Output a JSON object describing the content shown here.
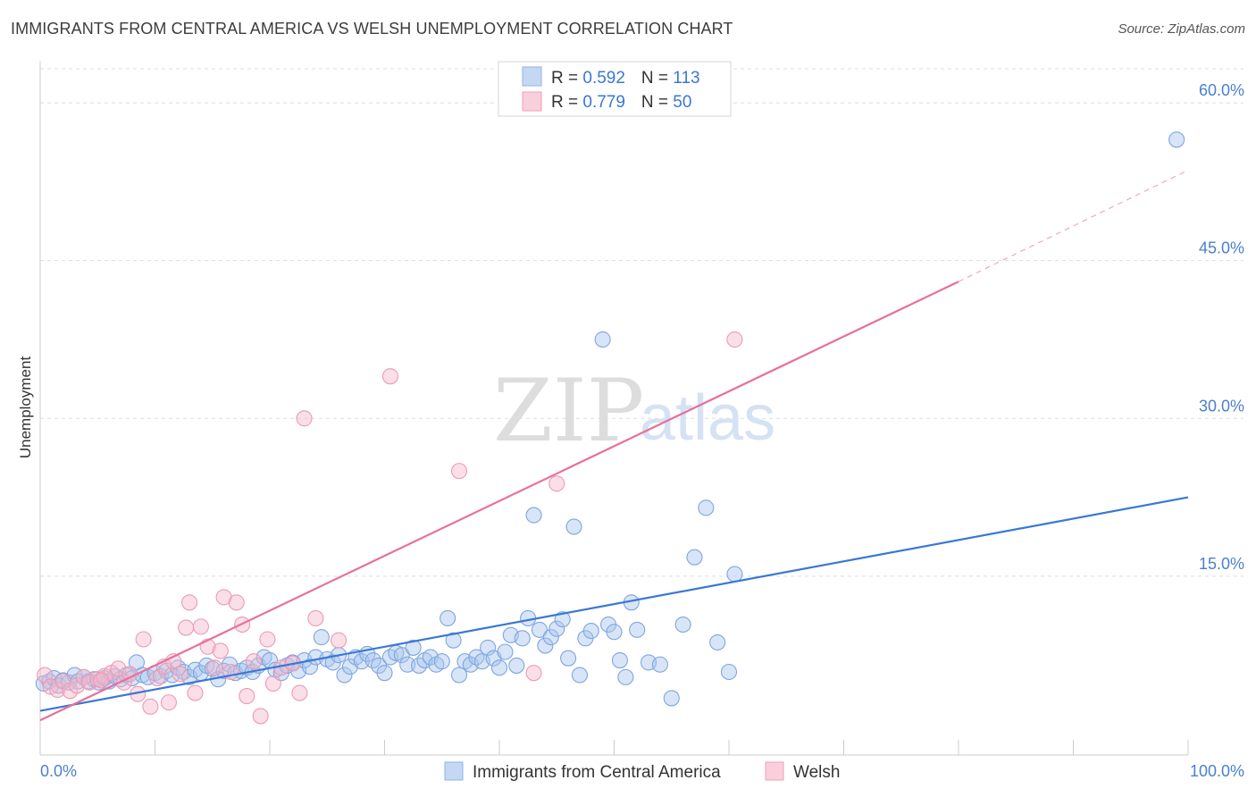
{
  "title": "IMMIGRANTS FROM CENTRAL AMERICA VS WELSH UNEMPLOYMENT CORRELATION CHART",
  "source": "Source: ZipAtlas.com",
  "watermark": {
    "zip": "ZIP",
    "atlas": "atlas"
  },
  "colors": {
    "blue": "#3a78d4",
    "pink": "#e8709a",
    "blue_fill": "#a9c6ee",
    "pink_fill": "#f5b8cc",
    "grid": "#dddddd"
  },
  "legend": {
    "rows": [
      {
        "r_label": "R = ",
        "r_value": "0.592",
        "n_label": "N = ",
        "n_value": "113"
      },
      {
        "r_label": "R = ",
        "r_value": "0.779",
        "n_label": "N = ",
        "n_value": "50"
      }
    ]
  },
  "chart_data": {
    "type": "scatter",
    "title": "IMMIGRANTS FROM CENTRAL AMERICA VS WELSH UNEMPLOYMENT CORRELATION CHART",
    "xlabel": "",
    "ylabel": "Unemployment",
    "xlim": [
      0,
      100
    ],
    "ylim": [
      -2,
      64
    ],
    "x_tick_labels": [
      {
        "value": 0,
        "label": "0.0%"
      },
      {
        "value": 100,
        "label": "100.0%"
      }
    ],
    "y_ticks": [
      {
        "value": 15,
        "label": "15.0%"
      },
      {
        "value": 30,
        "label": "30.0%"
      },
      {
        "value": 45,
        "label": "45.0%"
      },
      {
        "value": 60,
        "label": "60.0%"
      }
    ],
    "series": [
      {
        "name": "Immigrants from Central America",
        "color": "#3a78d4",
        "trend": {
          "x0": 0,
          "y0": 2.2,
          "x1": 100,
          "y1": 22.5
        },
        "points": [
          [
            0.3,
            4.8
          ],
          [
            0.8,
            5.0
          ],
          [
            1.2,
            5.3
          ],
          [
            1.6,
            4.6
          ],
          [
            2.0,
            5.1
          ],
          [
            2.5,
            4.9
          ],
          [
            3.0,
            5.6
          ],
          [
            3.3,
            5.0
          ],
          [
            3.8,
            5.4
          ],
          [
            4.2,
            5.0
          ],
          [
            4.7,
            5.2
          ],
          [
            5.1,
            4.9
          ],
          [
            5.6,
            5.3
          ],
          [
            6.0,
            5.0
          ],
          [
            6.5,
            5.5
          ],
          [
            7.0,
            5.2
          ],
          [
            7.5,
            5.6
          ],
          [
            8.0,
            5.3
          ],
          [
            8.4,
            6.8
          ],
          [
            8.9,
            5.6
          ],
          [
            9.4,
            5.4
          ],
          [
            10.0,
            5.8
          ],
          [
            10.5,
            5.5
          ],
          [
            11.0,
            6.0
          ],
          [
            11.5,
            5.6
          ],
          [
            12.0,
            6.3
          ],
          [
            12.5,
            5.9
          ],
          [
            13.0,
            5.4
          ],
          [
            13.5,
            6.1
          ],
          [
            14.0,
            5.8
          ],
          [
            14.5,
            6.5
          ],
          [
            15.0,
            6.2
          ],
          [
            15.5,
            5.2
          ],
          [
            16.0,
            6.0
          ],
          [
            16.5,
            6.6
          ],
          [
            17.0,
            5.8
          ],
          [
            17.5,
            6.0
          ],
          [
            18.0,
            6.3
          ],
          [
            18.5,
            5.9
          ],
          [
            19.0,
            6.5
          ],
          [
            19.5,
            7.3
          ],
          [
            20.0,
            7.0
          ],
          [
            20.5,
            6.1
          ],
          [
            21.0,
            5.8
          ],
          [
            21.5,
            6.5
          ],
          [
            22.0,
            6.8
          ],
          [
            22.5,
            6.0
          ],
          [
            23.0,
            7.0
          ],
          [
            23.5,
            6.4
          ],
          [
            24.0,
            7.3
          ],
          [
            24.5,
            9.2
          ],
          [
            25.0,
            7.1
          ],
          [
            25.5,
            6.8
          ],
          [
            26.0,
            7.5
          ],
          [
            26.5,
            5.6
          ],
          [
            27.0,
            6.4
          ],
          [
            27.5,
            7.3
          ],
          [
            28.0,
            6.9
          ],
          [
            28.5,
            7.6
          ],
          [
            29.0,
            7.0
          ],
          [
            29.5,
            6.5
          ],
          [
            30.0,
            5.8
          ],
          [
            30.5,
            7.3
          ],
          [
            31.0,
            7.7
          ],
          [
            31.5,
            7.5
          ],
          [
            32.0,
            6.6
          ],
          [
            32.5,
            8.2
          ],
          [
            33.0,
            6.5
          ],
          [
            33.5,
            7.0
          ],
          [
            34.0,
            7.3
          ],
          [
            34.5,
            6.6
          ],
          [
            35.0,
            6.9
          ],
          [
            35.5,
            11.0
          ],
          [
            36.0,
            8.9
          ],
          [
            36.5,
            5.6
          ],
          [
            37.0,
            6.9
          ],
          [
            37.5,
            6.6
          ],
          [
            38.0,
            7.3
          ],
          [
            38.5,
            6.9
          ],
          [
            39.0,
            8.2
          ],
          [
            39.5,
            7.2
          ],
          [
            40.0,
            6.3
          ],
          [
            40.5,
            7.8
          ],
          [
            41.0,
            9.4
          ],
          [
            41.5,
            6.5
          ],
          [
            42.0,
            9.1
          ],
          [
            42.5,
            11.0
          ],
          [
            43.0,
            20.8
          ],
          [
            43.5,
            9.9
          ],
          [
            44.0,
            8.4
          ],
          [
            44.5,
            9.2
          ],
          [
            45.0,
            10.0
          ],
          [
            45.5,
            10.9
          ],
          [
            46.0,
            7.2
          ],
          [
            46.5,
            19.7
          ],
          [
            47.0,
            5.6
          ],
          [
            47.5,
            9.1
          ],
          [
            48.0,
            9.8
          ],
          [
            49.0,
            37.5
          ],
          [
            49.5,
            10.4
          ],
          [
            50.0,
            9.7
          ],
          [
            50.5,
            7.0
          ],
          [
            51.0,
            5.4
          ],
          [
            51.5,
            12.5
          ],
          [
            52.0,
            9.9
          ],
          [
            53.0,
            6.8
          ],
          [
            54.0,
            6.6
          ],
          [
            55.0,
            3.4
          ],
          [
            56.0,
            10.4
          ],
          [
            57.0,
            16.8
          ],
          [
            58.0,
            21.5
          ],
          [
            59.0,
            8.7
          ],
          [
            60.0,
            5.9
          ],
          [
            60.5,
            15.2
          ],
          [
            99.0,
            56.5
          ]
        ]
      },
      {
        "name": "Welsh",
        "color": "#e8709a",
        "trend": {
          "x0": 0,
          "y0": 1.3,
          "x1": 80,
          "y1": 43.0
        },
        "trend_dashed": {
          "x0": 80,
          "y0": 43.0,
          "x1": 100,
          "y1": 53.6
        },
        "points": [
          [
            0.4,
            5.6
          ],
          [
            0.9,
            4.5
          ],
          [
            1.5,
            4.2
          ],
          [
            2.0,
            5.0
          ],
          [
            2.6,
            4.1
          ],
          [
            3.2,
            4.6
          ],
          [
            3.8,
            5.4
          ],
          [
            4.3,
            4.9
          ],
          [
            5.0,
            5.2
          ],
          [
            5.6,
            5.5
          ],
          [
            6.2,
            5.8
          ],
          [
            6.8,
            6.2
          ],
          [
            7.3,
            4.9
          ],
          [
            7.8,
            5.7
          ],
          [
            8.5,
            3.8
          ],
          [
            9.0,
            9.0
          ],
          [
            9.6,
            2.6
          ],
          [
            10.2,
            5.3
          ],
          [
            10.8,
            6.4
          ],
          [
            11.2,
            3.0
          ],
          [
            11.6,
            6.9
          ],
          [
            12.2,
            5.7
          ],
          [
            12.7,
            10.1
          ],
          [
            13.0,
            12.5
          ],
          [
            13.5,
            3.9
          ],
          [
            14.0,
            10.2
          ],
          [
            14.6,
            8.3
          ],
          [
            15.2,
            6.3
          ],
          [
            15.7,
            7.9
          ],
          [
            16.0,
            13.0
          ],
          [
            16.6,
            5.9
          ],
          [
            17.1,
            12.5
          ],
          [
            17.6,
            10.4
          ],
          [
            18.0,
            3.6
          ],
          [
            18.6,
            6.9
          ],
          [
            19.2,
            1.7
          ],
          [
            19.8,
            9.0
          ],
          [
            20.3,
            4.8
          ],
          [
            21.0,
            6.3
          ],
          [
            22.0,
            6.7
          ],
          [
            22.6,
            3.9
          ],
          [
            23.0,
            30.0
          ],
          [
            24.0,
            11.0
          ],
          [
            26.0,
            8.9
          ],
          [
            30.5,
            34.0
          ],
          [
            36.5,
            25.0
          ],
          [
            43.0,
            5.8
          ],
          [
            45.0,
            23.8
          ],
          [
            60.5,
            37.5
          ],
          [
            5.3,
            5.1
          ]
        ]
      }
    ]
  },
  "bottom_legend": [
    {
      "label": "Immigrants from Central America"
    },
    {
      "label": "Welsh"
    }
  ]
}
